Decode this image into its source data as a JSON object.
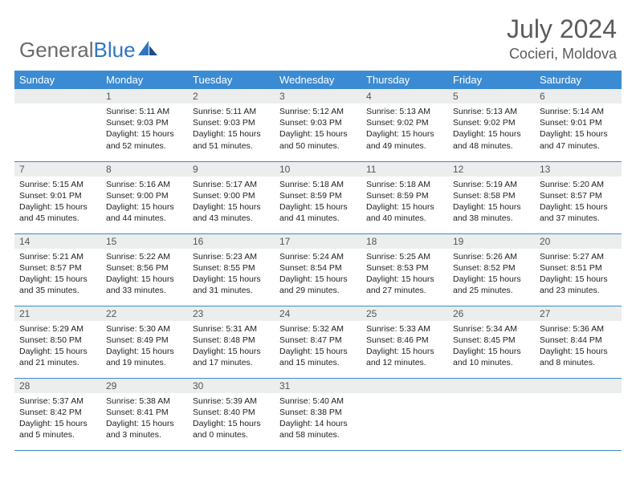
{
  "brand": {
    "part1": "General",
    "part2": "Blue"
  },
  "title": "July 2024",
  "location": "Cocieri, Moldova",
  "colors": {
    "header_bg": "#3b8bd4",
    "header_text": "#ffffff",
    "daynum_bg": "#eceded",
    "border": "#3b8bd4",
    "title_color": "#5b5b5b",
    "logo_gray": "#6b6b6b",
    "logo_blue": "#2f76c2"
  },
  "weekdays": [
    "Sunday",
    "Monday",
    "Tuesday",
    "Wednesday",
    "Thursday",
    "Friday",
    "Saturday"
  ],
  "weeks": [
    [
      {
        "n": "",
        "sr": "",
        "ss": "",
        "dl": ""
      },
      {
        "n": "1",
        "sr": "Sunrise: 5:11 AM",
        "ss": "Sunset: 9:03 PM",
        "dl": "Daylight: 15 hours and 52 minutes."
      },
      {
        "n": "2",
        "sr": "Sunrise: 5:11 AM",
        "ss": "Sunset: 9:03 PM",
        "dl": "Daylight: 15 hours and 51 minutes."
      },
      {
        "n": "3",
        "sr": "Sunrise: 5:12 AM",
        "ss": "Sunset: 9:03 PM",
        "dl": "Daylight: 15 hours and 50 minutes."
      },
      {
        "n": "4",
        "sr": "Sunrise: 5:13 AM",
        "ss": "Sunset: 9:02 PM",
        "dl": "Daylight: 15 hours and 49 minutes."
      },
      {
        "n": "5",
        "sr": "Sunrise: 5:13 AM",
        "ss": "Sunset: 9:02 PM",
        "dl": "Daylight: 15 hours and 48 minutes."
      },
      {
        "n": "6",
        "sr": "Sunrise: 5:14 AM",
        "ss": "Sunset: 9:01 PM",
        "dl": "Daylight: 15 hours and 47 minutes."
      }
    ],
    [
      {
        "n": "7",
        "sr": "Sunrise: 5:15 AM",
        "ss": "Sunset: 9:01 PM",
        "dl": "Daylight: 15 hours and 45 minutes."
      },
      {
        "n": "8",
        "sr": "Sunrise: 5:16 AM",
        "ss": "Sunset: 9:00 PM",
        "dl": "Daylight: 15 hours and 44 minutes."
      },
      {
        "n": "9",
        "sr": "Sunrise: 5:17 AM",
        "ss": "Sunset: 9:00 PM",
        "dl": "Daylight: 15 hours and 43 minutes."
      },
      {
        "n": "10",
        "sr": "Sunrise: 5:18 AM",
        "ss": "Sunset: 8:59 PM",
        "dl": "Daylight: 15 hours and 41 minutes."
      },
      {
        "n": "11",
        "sr": "Sunrise: 5:18 AM",
        "ss": "Sunset: 8:59 PM",
        "dl": "Daylight: 15 hours and 40 minutes."
      },
      {
        "n": "12",
        "sr": "Sunrise: 5:19 AM",
        "ss": "Sunset: 8:58 PM",
        "dl": "Daylight: 15 hours and 38 minutes."
      },
      {
        "n": "13",
        "sr": "Sunrise: 5:20 AM",
        "ss": "Sunset: 8:57 PM",
        "dl": "Daylight: 15 hours and 37 minutes."
      }
    ],
    [
      {
        "n": "14",
        "sr": "Sunrise: 5:21 AM",
        "ss": "Sunset: 8:57 PM",
        "dl": "Daylight: 15 hours and 35 minutes."
      },
      {
        "n": "15",
        "sr": "Sunrise: 5:22 AM",
        "ss": "Sunset: 8:56 PM",
        "dl": "Daylight: 15 hours and 33 minutes."
      },
      {
        "n": "16",
        "sr": "Sunrise: 5:23 AM",
        "ss": "Sunset: 8:55 PM",
        "dl": "Daylight: 15 hours and 31 minutes."
      },
      {
        "n": "17",
        "sr": "Sunrise: 5:24 AM",
        "ss": "Sunset: 8:54 PM",
        "dl": "Daylight: 15 hours and 29 minutes."
      },
      {
        "n": "18",
        "sr": "Sunrise: 5:25 AM",
        "ss": "Sunset: 8:53 PM",
        "dl": "Daylight: 15 hours and 27 minutes."
      },
      {
        "n": "19",
        "sr": "Sunrise: 5:26 AM",
        "ss": "Sunset: 8:52 PM",
        "dl": "Daylight: 15 hours and 25 minutes."
      },
      {
        "n": "20",
        "sr": "Sunrise: 5:27 AM",
        "ss": "Sunset: 8:51 PM",
        "dl": "Daylight: 15 hours and 23 minutes."
      }
    ],
    [
      {
        "n": "21",
        "sr": "Sunrise: 5:29 AM",
        "ss": "Sunset: 8:50 PM",
        "dl": "Daylight: 15 hours and 21 minutes."
      },
      {
        "n": "22",
        "sr": "Sunrise: 5:30 AM",
        "ss": "Sunset: 8:49 PM",
        "dl": "Daylight: 15 hours and 19 minutes."
      },
      {
        "n": "23",
        "sr": "Sunrise: 5:31 AM",
        "ss": "Sunset: 8:48 PM",
        "dl": "Daylight: 15 hours and 17 minutes."
      },
      {
        "n": "24",
        "sr": "Sunrise: 5:32 AM",
        "ss": "Sunset: 8:47 PM",
        "dl": "Daylight: 15 hours and 15 minutes."
      },
      {
        "n": "25",
        "sr": "Sunrise: 5:33 AM",
        "ss": "Sunset: 8:46 PM",
        "dl": "Daylight: 15 hours and 12 minutes."
      },
      {
        "n": "26",
        "sr": "Sunrise: 5:34 AM",
        "ss": "Sunset: 8:45 PM",
        "dl": "Daylight: 15 hours and 10 minutes."
      },
      {
        "n": "27",
        "sr": "Sunrise: 5:36 AM",
        "ss": "Sunset: 8:44 PM",
        "dl": "Daylight: 15 hours and 8 minutes."
      }
    ],
    [
      {
        "n": "28",
        "sr": "Sunrise: 5:37 AM",
        "ss": "Sunset: 8:42 PM",
        "dl": "Daylight: 15 hours and 5 minutes."
      },
      {
        "n": "29",
        "sr": "Sunrise: 5:38 AM",
        "ss": "Sunset: 8:41 PM",
        "dl": "Daylight: 15 hours and 3 minutes."
      },
      {
        "n": "30",
        "sr": "Sunrise: 5:39 AM",
        "ss": "Sunset: 8:40 PM",
        "dl": "Daylight: 15 hours and 0 minutes."
      },
      {
        "n": "31",
        "sr": "Sunrise: 5:40 AM",
        "ss": "Sunset: 8:38 PM",
        "dl": "Daylight: 14 hours and 58 minutes."
      },
      {
        "n": "",
        "sr": "",
        "ss": "",
        "dl": ""
      },
      {
        "n": "",
        "sr": "",
        "ss": "",
        "dl": ""
      },
      {
        "n": "",
        "sr": "",
        "ss": "",
        "dl": ""
      }
    ]
  ]
}
